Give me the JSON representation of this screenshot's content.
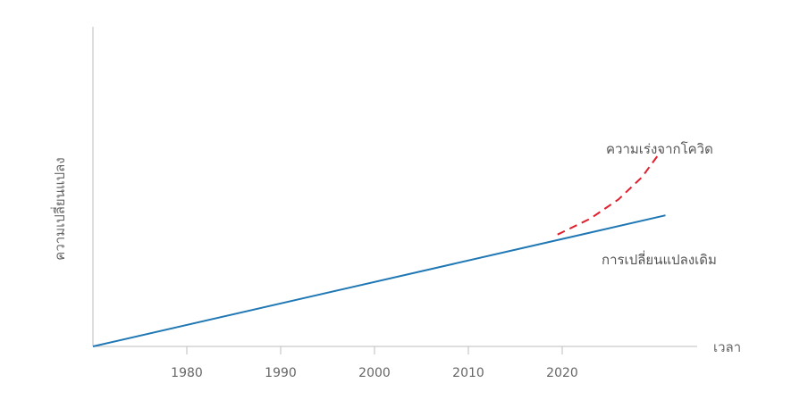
{
  "chart_data": {
    "type": "line",
    "title": "",
    "xlabel": "เวลา",
    "ylabel": "ความเปลี่ยนแปลง",
    "x_ticks": [
      "1980",
      "1990",
      "2000",
      "2010",
      "2020"
    ],
    "x_range": [
      1970,
      2035
    ],
    "y_range": [
      0,
      10
    ],
    "grid": false,
    "legend": "none",
    "series": [
      {
        "name": "การเปลี่ยนแปลงเดิม",
        "style": "solid",
        "color": "#1f77b4",
        "points": [
          [
            1970,
            0
          ],
          [
            2031,
            4.1
          ]
        ]
      },
      {
        "name": "ความเร่งจากโควิด",
        "style": "dashed",
        "color": "#e0202e",
        "points": [
          [
            2019.5,
            3.5
          ],
          [
            2023,
            4.0
          ],
          [
            2026,
            4.6
          ],
          [
            2028.5,
            5.3
          ],
          [
            2030.5,
            6.1
          ]
        ]
      }
    ]
  }
}
